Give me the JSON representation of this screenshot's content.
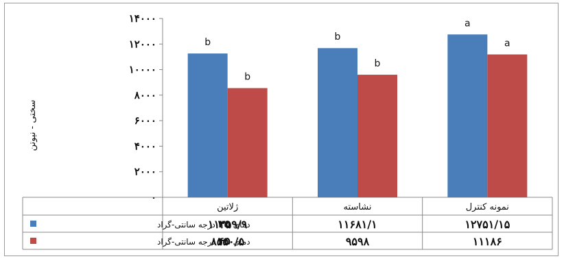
{
  "chart_data": {
    "type": "bar",
    "ylabel": "سختی - نیوتن",
    "ylim": [
      0,
      14000
    ],
    "yticks": [
      0,
      2000,
      4000,
      6000,
      8000,
      10000,
      12000,
      14000
    ],
    "ytick_labels": [
      "۰",
      "۲۰۰۰",
      "۴۰۰۰",
      "۶۰۰۰",
      "۸۰۰۰",
      "۱۰۰۰۰",
      "۱۲۰۰۰",
      "۱۴۰۰۰"
    ],
    "categories": [
      "نمونه کنترل",
      "نشاسته",
      "ژلاتین"
    ],
    "series": [
      {
        "legend_prefix": "دمای",
        "legend_number": "۲۵",
        "legend_suffix": "درجه سانتی-گراد",
        "color": "#4a7ebb",
        "values": [
          12751.15,
          11681.1,
          11259.9
        ],
        "value_labels": [
          "۱۲۷۵۱/۱۵",
          "۱۱۶۸۱/۱",
          "۱۱۲۵۹/۹"
        ],
        "significance": [
          "a",
          "b",
          "b"
        ]
      },
      {
        "legend_prefix": "دمای",
        "legend_number": "۴۵",
        "legend_suffix": "درجه سانتی-گراد",
        "color": "#be4b48",
        "values": [
          11186,
          9598,
          8550.5
        ],
        "value_labels": [
          "۱۱۱۸۶",
          "۹۵۹۸",
          "۸۵۵۰/۵"
        ],
        "significance": [
          "a",
          "b",
          "b"
        ]
      }
    ],
    "grid": false,
    "legend": "bottom-table"
  }
}
